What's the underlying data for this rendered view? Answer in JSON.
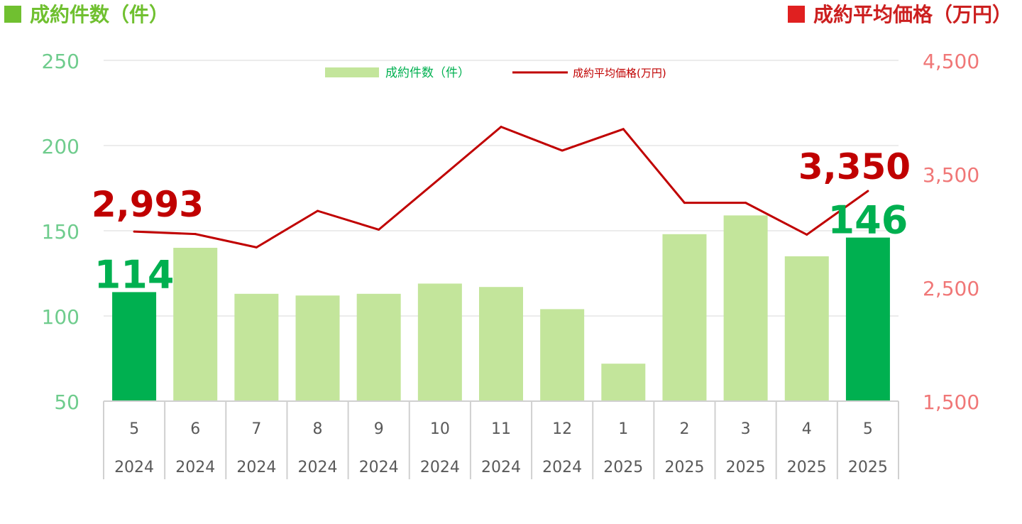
{
  "chart_data": {
    "type": "bar",
    "titles": {
      "left": "成約件数（件）",
      "right": "成約平均価格（万円）"
    },
    "categories": [
      {
        "month": "5",
        "year": "2024"
      },
      {
        "month": "6",
        "year": "2024"
      },
      {
        "month": "7",
        "year": "2024"
      },
      {
        "month": "8",
        "year": "2024"
      },
      {
        "month": "9",
        "year": "2024"
      },
      {
        "month": "10",
        "year": "2024"
      },
      {
        "month": "11",
        "year": "2024"
      },
      {
        "month": "12",
        "year": "2024"
      },
      {
        "month": "1",
        "year": "2025"
      },
      {
        "month": "2",
        "year": "2025"
      },
      {
        "month": "3",
        "year": "2025"
      },
      {
        "month": "4",
        "year": "2025"
      },
      {
        "month": "5",
        "year": "2025"
      }
    ],
    "series": [
      {
        "name": "成約件数（件）",
        "type": "bar",
        "axis": "left",
        "values": [
          114,
          140,
          113,
          112,
          113,
          119,
          117,
          104,
          72,
          148,
          159,
          135,
          146
        ]
      },
      {
        "name": "成約平均価格(万円)",
        "type": "line",
        "axis": "right",
        "values": [
          2993,
          2971,
          2854,
          3175,
          3010,
          3461,
          3915,
          3706,
          3895,
          3246,
          3246,
          2966,
          3350
        ]
      }
    ],
    "left_axis": {
      "ylim": [
        50,
        250
      ],
      "ticks": [
        "50",
        "100",
        "150",
        "200",
        "250"
      ]
    },
    "right_axis": {
      "ylim": [
        1500,
        4500
      ],
      "ticks": [
        "1,500",
        "2,500",
        "3,500",
        "4,500"
      ]
    },
    "highlight_indices": [
      0,
      12
    ],
    "data_labels": {
      "bar_first": "114",
      "bar_last": "146",
      "line_first": "2,993",
      "line_last": "3,350"
    },
    "legend_position": "top-center",
    "grid": true,
    "colors": {
      "bar": "#c3e59b",
      "bar_highlight": "#00b050",
      "line": "#c00000",
      "left_axis_text": "#6fcc8d",
      "right_axis_text": "#f07777",
      "title_left": "#70c030",
      "title_right": "#cc2020",
      "legend_left_text": "#00b050",
      "legend_right_text": "#c00000",
      "label_bar": "#00b050",
      "label_line": "#c00000",
      "category_text": "#595959",
      "grid": "#d9d9d9",
      "table_line": "#d0d0d0"
    }
  }
}
